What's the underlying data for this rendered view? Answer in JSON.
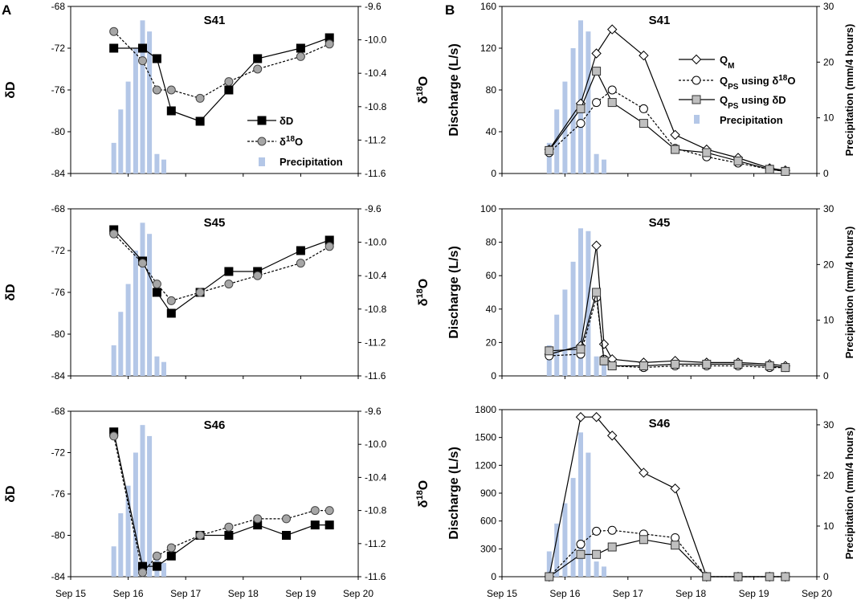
{
  "figure": {
    "panel_letter_left": "A",
    "panel_letter_right": "B"
  },
  "x_axis": {
    "ticks": [
      {
        "day": 0,
        "label": "Sep 15"
      },
      {
        "day": 1,
        "label": "Sep 16"
      },
      {
        "day": 2,
        "label": "Sep 17"
      },
      {
        "day": 3,
        "label": "Sep 18"
      },
      {
        "day": 4,
        "label": "Sep 19"
      },
      {
        "day": 5,
        "label": "Sep 20"
      }
    ]
  },
  "colors": {
    "bar": "#b4c7e7",
    "marker_square": "#000000",
    "marker_circle_gray": "#a6a6a6",
    "marker_square_gray": "#bfbfbf"
  },
  "legends": {
    "isotope": {
      "dD": "δD",
      "d18O_prefix": "δ",
      "d18O_sup": "18",
      "d18O_suffix": "O",
      "precip": "Precipitation"
    },
    "discharge": {
      "qm_main": "Q",
      "qm_sub": "M",
      "qps_main": "Q",
      "qps_sub": "PS",
      "qps18_suffix": " using δ",
      "qps18_sup": "18",
      "qps18_end": "O",
      "qpsd_suffix": " using δD",
      "precip": "Precipitation"
    }
  },
  "chart_data": [
    {
      "type": "line",
      "panel": "A",
      "title": "S41",
      "ylabel": "δD",
      "y2label_prefix": "δ",
      "y2label_sup": "18",
      "y2label_suffix": "O",
      "ylim": [
        -84,
        -68
      ],
      "yticks": [
        -68,
        -72,
        -76,
        -80,
        -84
      ],
      "y2lim": [
        -11.6,
        -9.6
      ],
      "y2ticks": [
        "-9.6",
        "-10.0",
        "-10.4",
        "-10.8",
        "-11.2",
        "-11.6"
      ],
      "precip_max": 30,
      "precip": {
        "x": [
          0.75,
          0.87,
          1.0,
          1.13,
          1.25,
          1.37,
          1.5,
          1.62
        ],
        "values": [
          5.5,
          11.5,
          16.5,
          22.5,
          27.5,
          25.5,
          3.5,
          2.5
        ]
      },
      "series": [
        {
          "name": "δD",
          "axis": "left",
          "marker": "square-black",
          "dash": false,
          "x": [
            0.75,
            1.25,
            1.5,
            1.75,
            2.25,
            2.75,
            3.25,
            4.0,
            4.5
          ],
          "y": [
            -72,
            -72,
            -73,
            -78,
            -79,
            -76,
            -73,
            -72,
            -71
          ]
        },
        {
          "name": "δ18O",
          "axis": "right",
          "marker": "circle-gray",
          "dash": true,
          "x": [
            0.75,
            1.25,
            1.5,
            1.75,
            2.25,
            2.75,
            3.25,
            4.0,
            4.5
          ],
          "y": [
            -9.9,
            -10.25,
            -10.6,
            -10.6,
            -10.7,
            -10.5,
            -10.35,
            -10.2,
            -10.05
          ]
        }
      ]
    },
    {
      "type": "line",
      "panel": "A",
      "title": "S45",
      "ylabel": "δD",
      "y2label_prefix": "δ",
      "y2label_sup": "18",
      "y2label_suffix": "O",
      "ylim": [
        -84,
        -68
      ],
      "yticks": [
        -68,
        -72,
        -76,
        -80,
        -84
      ],
      "y2lim": [
        -11.6,
        -9.6
      ],
      "y2ticks": [
        "-9.6",
        "-10.0",
        "-10.4",
        "-10.8",
        "-11.2",
        "-11.6"
      ],
      "precip_max": 30,
      "precip": {
        "x": [
          0.75,
          0.87,
          1.0,
          1.13,
          1.25,
          1.37,
          1.5,
          1.62
        ],
        "values": [
          5.5,
          11.5,
          16.5,
          22.5,
          27.5,
          25.5,
          3.5,
          2.5
        ]
      },
      "series": [
        {
          "name": "δD",
          "axis": "left",
          "marker": "square-black",
          "dash": false,
          "x": [
            0.75,
            1.25,
            1.5,
            1.75,
            2.25,
            2.75,
            3.25,
            4.0,
            4.5
          ],
          "y": [
            -70,
            -73,
            -76,
            -78,
            -76,
            -74,
            -74,
            -72,
            -71
          ]
        },
        {
          "name": "δ18O",
          "axis": "right",
          "marker": "circle-gray",
          "dash": true,
          "x": [
            0.75,
            1.25,
            1.5,
            1.75,
            2.25,
            2.75,
            3.25,
            4.0,
            4.5
          ],
          "y": [
            -9.9,
            -10.25,
            -10.5,
            -10.7,
            -10.6,
            -10.5,
            -10.4,
            -10.25,
            -10.05
          ]
        }
      ]
    },
    {
      "type": "line",
      "panel": "A",
      "title": "S46",
      "ylabel": "δD",
      "y2label_prefix": "δ",
      "y2label_sup": "18",
      "y2label_suffix": "O",
      "ylim": [
        -84,
        -68
      ],
      "yticks": [
        -68,
        -72,
        -76,
        -80,
        -84
      ],
      "y2lim": [
        -11.6,
        -9.6
      ],
      "y2ticks": [
        "-9.6",
        "-10.0",
        "-10.4",
        "-10.8",
        "-11.2",
        "-11.6"
      ],
      "precip_max": 30,
      "precip": {
        "x": [
          0.75,
          0.87,
          1.0,
          1.13,
          1.25,
          1.37,
          1.5,
          1.62
        ],
        "values": [
          5.5,
          11.5,
          16.5,
          22.5,
          27.5,
          25.5,
          3.5,
          2.5
        ]
      },
      "series": [
        {
          "name": "δD",
          "axis": "left",
          "marker": "square-black",
          "dash": false,
          "x": [
            0.75,
            1.25,
            1.5,
            1.75,
            2.25,
            2.75,
            3.25,
            3.75,
            4.25,
            4.5
          ],
          "y": [
            -70,
            -83,
            -83,
            -82,
            -80,
            -80,
            -79,
            -80,
            -79,
            -79
          ]
        },
        {
          "name": "δ18O",
          "axis": "right",
          "marker": "circle-gray",
          "dash": true,
          "x": [
            0.75,
            1.25,
            1.5,
            1.75,
            2.25,
            2.75,
            3.25,
            3.75,
            4.25,
            4.5
          ],
          "y": [
            -9.9,
            -11.55,
            -11.35,
            -11.25,
            -11.1,
            -11.0,
            -10.9,
            -10.9,
            -10.8,
            -10.8
          ]
        }
      ]
    },
    {
      "type": "line",
      "panel": "B",
      "title": "S41",
      "ylabel": "Discharge (L/s)",
      "y2label": "Precipitation (mm/4 hours)",
      "ylim": [
        0,
        160
      ],
      "yticks": [
        0,
        40,
        80,
        120,
        160
      ],
      "y2lim": [
        0,
        30
      ],
      "y2ticks": [
        0,
        10,
        20,
        30
      ],
      "precip": {
        "x": [
          0.75,
          0.87,
          1.0,
          1.13,
          1.25,
          1.37,
          1.5,
          1.62
        ],
        "values": [
          5.5,
          11.5,
          16.5,
          22.5,
          27.5,
          25.5,
          3.5,
          2.5
        ]
      },
      "series": [
        {
          "name": "QM",
          "marker": "diamond-white",
          "dash": false,
          "x": [
            0.75,
            1.25,
            1.5,
            1.75,
            2.25,
            2.75,
            3.25,
            3.75,
            4.25,
            4.5
          ],
          "y": [
            23,
            67,
            115,
            138,
            113,
            37,
            23,
            15,
            5,
            3
          ]
        },
        {
          "name": "QPS using δ18O",
          "marker": "circle-white",
          "dash": true,
          "x": [
            0.75,
            1.25,
            1.5,
            1.75,
            2.25,
            2.75,
            3.25,
            3.75,
            4.25,
            4.5
          ],
          "y": [
            20,
            48,
            68,
            80,
            62,
            24,
            16,
            10,
            4,
            2
          ]
        },
        {
          "name": "QPS using δD",
          "marker": "square-gray",
          "dash": false,
          "x": [
            0.75,
            1.25,
            1.5,
            1.75,
            2.25,
            2.75,
            3.25,
            3.75,
            4.25,
            4.5
          ],
          "y": [
            22,
            62,
            98,
            68,
            48,
            23,
            20,
            12,
            4,
            2
          ]
        }
      ]
    },
    {
      "type": "line",
      "panel": "B",
      "title": "S45",
      "ylabel": "Discharge (L/s)",
      "y2label": "Precipitation (mm/4 hours)",
      "ylim": [
        0,
        100
      ],
      "yticks": [
        0,
        20,
        40,
        60,
        80,
        100
      ],
      "y2lim": [
        0,
        30
      ],
      "y2ticks": [
        0,
        10,
        20,
        30
      ],
      "precip": {
        "x": [
          0.75,
          0.87,
          1.0,
          1.13,
          1.25,
          1.37,
          1.5,
          1.62
        ],
        "values": [
          5.5,
          11.0,
          15.5,
          20.5,
          26.5,
          26.0,
          3.5,
          2.5
        ]
      },
      "series": [
        {
          "name": "QM",
          "marker": "diamond-white",
          "dash": false,
          "x": [
            0.75,
            1.25,
            1.5,
            1.62,
            1.75,
            2.25,
            2.75,
            3.25,
            3.75,
            4.25,
            4.5
          ],
          "y": [
            13,
            18,
            78,
            19,
            10,
            8,
            9,
            8,
            8,
            7,
            6
          ]
        },
        {
          "name": "QPS using δ18O",
          "marker": "circle-white",
          "dash": true,
          "x": [
            0.75,
            1.25,
            1.5,
            1.62,
            1.75,
            2.25,
            2.75,
            3.25,
            3.75,
            4.25,
            4.5
          ],
          "y": [
            12,
            13,
            47,
            10,
            6,
            5,
            6,
            6,
            6,
            5,
            5
          ]
        },
        {
          "name": "QPS using δD",
          "marker": "square-gray",
          "dash": false,
          "x": [
            0.75,
            1.25,
            1.5,
            1.62,
            1.75,
            2.25,
            2.75,
            3.25,
            3.75,
            4.25,
            4.5
          ],
          "y": [
            15,
            16,
            50,
            9,
            6,
            6,
            7,
            7,
            7,
            6,
            5
          ]
        }
      ]
    },
    {
      "type": "line",
      "panel": "B",
      "title": "S46",
      "ylabel": "Discharge (L/s)",
      "y2label": "Precipitation (mm/4 hours)",
      "ylim": [
        0,
        1800
      ],
      "yticks": [
        0,
        300,
        600,
        900,
        1200,
        1500,
        1800
      ],
      "y2lim": [
        0,
        33
      ],
      "y2ticks": [
        0,
        10,
        20,
        30
      ],
      "precip": {
        "x": [
          0.75,
          0.87,
          1.0,
          1.13,
          1.25,
          1.37,
          1.5,
          1.62
        ],
        "values": [
          5.0,
          10.5,
          14.5,
          19.5,
          28.5,
          24.5,
          3.0,
          2.0
        ]
      },
      "series": [
        {
          "name": "QM",
          "marker": "diamond-white",
          "dash": false,
          "x": [
            0.75,
            1.25,
            1.5,
            1.75,
            2.25,
            2.75,
            3.25,
            3.75,
            4.25,
            4.5
          ],
          "y": [
            0,
            1720,
            1720,
            1520,
            1120,
            950,
            0,
            0,
            0,
            0
          ]
        },
        {
          "name": "QPS using δ18O",
          "marker": "circle-white",
          "dash": true,
          "x": [
            0.75,
            1.25,
            1.5,
            1.75,
            2.25,
            2.75,
            3.25,
            3.75,
            4.25,
            4.5
          ],
          "y": [
            0,
            350,
            490,
            500,
            460,
            420,
            0,
            0,
            0,
            0
          ]
        },
        {
          "name": "QPS using δD",
          "marker": "square-gray",
          "dash": false,
          "x": [
            0.75,
            1.25,
            1.5,
            1.75,
            2.25,
            2.75,
            3.25,
            3.75,
            4.25,
            4.5
          ],
          "y": [
            0,
            240,
            240,
            320,
            400,
            340,
            0,
            0,
            0,
            0
          ]
        }
      ]
    }
  ]
}
